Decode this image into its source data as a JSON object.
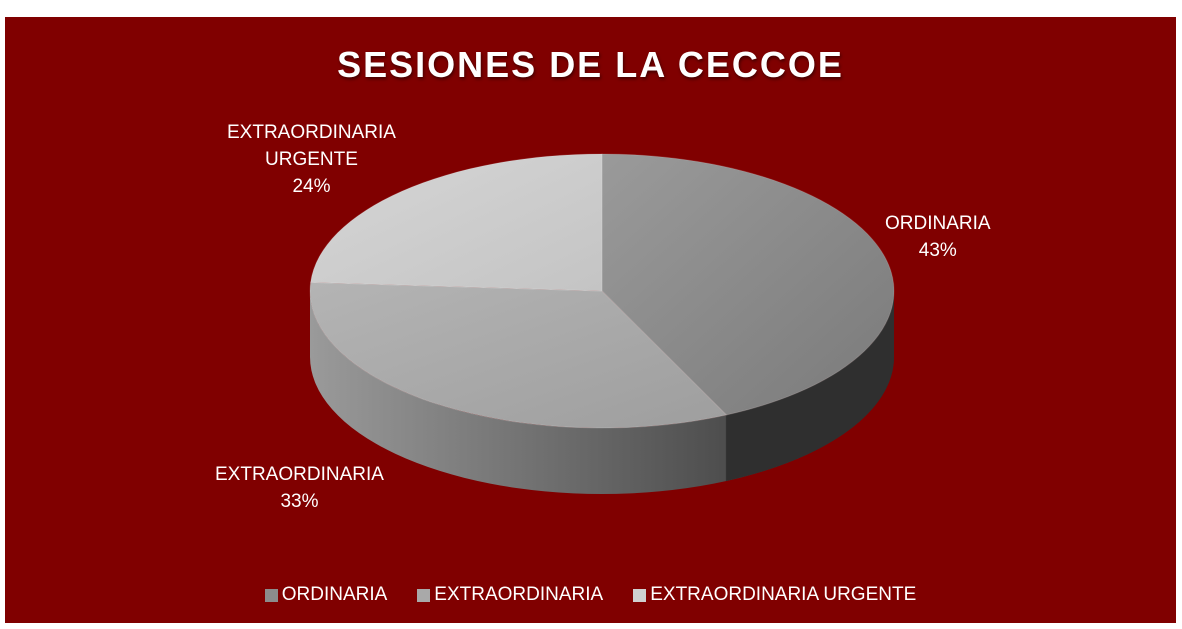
{
  "chart_data": {
    "type": "pie",
    "title": "SESIONES DE LA CECCOE",
    "slices": [
      {
        "name": "ORDINARIA",
        "percent": 43,
        "label": "ORDINARIA\n43%",
        "color": "#8c8c8c"
      },
      {
        "name": "EXTRAORDINARIA",
        "percent": 33,
        "label": "EXTRAORDINARIA\n33%",
        "color": "#a9a9a9"
      },
      {
        "name": "EXTRAORDINARIA URGENTE",
        "percent": 24,
        "label": "EXTRAORDINARIA\nURGENTE\n24%",
        "color": "#d0d0d0"
      }
    ],
    "legend_position": "bottom",
    "background": "#800000"
  }
}
